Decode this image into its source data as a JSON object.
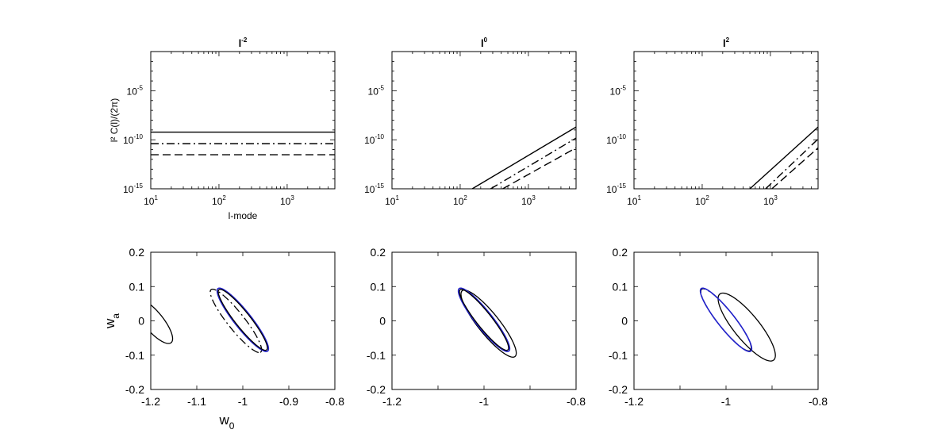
{
  "chart_data": [
    {
      "type": "line",
      "title": "l^-2",
      "title_base": "l",
      "title_exp": "-2",
      "xlabel": "l-mode",
      "ylabel": "l² C(l)/(2π)",
      "xscale": "log",
      "yscale": "log",
      "xlim": [
        10,
        5000
      ],
      "ylim": [
        1e-15,
        0.1
      ],
      "xticks": [
        {
          "base": "10",
          "exp": "1"
        },
        {
          "base": "10",
          "exp": "2"
        },
        {
          "base": "10",
          "exp": "3"
        }
      ],
      "yticks": [
        {
          "base": "10",
          "exp": "-15"
        },
        {
          "base": "10",
          "exp": "-10"
        },
        {
          "base": "10",
          "exp": "-5"
        }
      ],
      "series": [
        {
          "style": "solid",
          "x": [
            10,
            5000
          ],
          "y": [
            6e-10,
            6e-10
          ]
        },
        {
          "style": "dashdot",
          "x": [
            10,
            5000
          ],
          "y": [
            4e-11,
            4e-11
          ]
        },
        {
          "style": "dashed",
          "x": [
            10,
            5000
          ],
          "y": [
            3e-12,
            3e-12
          ]
        }
      ]
    },
    {
      "type": "line",
      "title": "l^0",
      "title_base": "l",
      "title_exp": "0",
      "xlabel": "",
      "ylabel": "",
      "xscale": "log",
      "yscale": "log",
      "xlim": [
        10,
        5000
      ],
      "ylim": [
        1e-15,
        0.1
      ],
      "xticks": [
        {
          "base": "10",
          "exp": "1"
        },
        {
          "base": "10",
          "exp": "2"
        },
        {
          "base": "10",
          "exp": "3"
        }
      ],
      "yticks": [
        {
          "base": "10",
          "exp": "-15"
        },
        {
          "base": "10",
          "exp": "-10"
        },
        {
          "base": "10",
          "exp": "-5"
        }
      ],
      "series": [
        {
          "style": "solid",
          "x": [
            150,
            5000
          ],
          "y": [
            1e-15,
            2e-09
          ]
        },
        {
          "style": "dashdot",
          "x": [
            280,
            5000
          ],
          "y": [
            1e-15,
            1.5e-10
          ]
        },
        {
          "style": "dashed",
          "x": [
            420,
            5000
          ],
          "y": [
            1e-15,
            1.5e-11
          ]
        }
      ]
    },
    {
      "type": "line",
      "title": "l^2",
      "title_base": "l",
      "title_exp": "2",
      "xlabel": "",
      "ylabel": "",
      "xscale": "log",
      "yscale": "log",
      "xlim": [
        10,
        5000
      ],
      "ylim": [
        1e-15,
        0.1
      ],
      "xticks": [
        {
          "base": "10",
          "exp": "1"
        },
        {
          "base": "10",
          "exp": "2"
        },
        {
          "base": "10",
          "exp": "3"
        }
      ],
      "yticks": [
        {
          "base": "10",
          "exp": "-15"
        },
        {
          "base": "10",
          "exp": "-10"
        },
        {
          "base": "10",
          "exp": "-5"
        }
      ],
      "series": [
        {
          "style": "solid",
          "x": [
            500,
            5000
          ],
          "y": [
            1e-15,
            2e-09
          ]
        },
        {
          "style": "dashdot",
          "x": [
            850,
            5000
          ],
          "y": [
            1e-15,
            1.2e-10
          ]
        },
        {
          "style": "dashed",
          "x": [
            1050,
            5000
          ],
          "y": [
            1e-15,
            1.5e-11
          ]
        }
      ]
    },
    {
      "type": "line",
      "title": "",
      "xlabel_base": "w",
      "xlabel_sub": "0",
      "ylabel_base": "w",
      "ylabel_sub": "a",
      "xlim": [
        -1.2,
        -0.8
      ],
      "ylim": [
        -0.2,
        0.2
      ],
      "xticks": [
        "-1.2",
        "-1.1",
        "-1",
        "-0.9",
        "-0.8"
      ],
      "yticks": [
        "-0.2",
        "-0.1",
        "0",
        "0.1",
        "0.2"
      ],
      "ellipses": [
        {
          "style": "solid",
          "color": "#000000",
          "cx": -1.195,
          "cy": 0.0,
          "rx": 0.075,
          "ry": 0.023,
          "angle_deg": -60
        },
        {
          "style": "dashdot",
          "color": "#000000",
          "cx": -1.015,
          "cy": 0.0,
          "rx": 0.106,
          "ry": 0.02,
          "angle_deg": -60
        },
        {
          "style": "solid",
          "color": "#2222cc",
          "cx": -1.0,
          "cy": 0.003,
          "rx": 0.106,
          "ry": 0.02,
          "angle_deg": -60
        },
        {
          "style": "solid",
          "color": "#000000",
          "cx": -1.0,
          "cy": 0.003,
          "rx": 0.102,
          "ry": 0.018,
          "angle_deg": -60
        }
      ]
    },
    {
      "type": "line",
      "title": "",
      "xlim": [
        -1.2,
        -0.8
      ],
      "ylim": [
        -0.2,
        0.2
      ],
      "xticks": [
        "-1.2",
        "",
        "-1",
        "",
        "-0.8"
      ],
      "yticks": [
        "-0.2",
        "-0.1",
        "0",
        "0.1",
        "0.2"
      ],
      "ellipses": [
        {
          "style": "solid",
          "color": "#000000",
          "cx": -0.99,
          "cy": -0.008,
          "rx": 0.112,
          "ry": 0.025,
          "angle_deg": -60
        },
        {
          "style": "solid",
          "color": "#2222cc",
          "cx": -1.0,
          "cy": 0.003,
          "rx": 0.106,
          "ry": 0.02,
          "angle_deg": -60
        },
        {
          "style": "solid",
          "color": "#000000",
          "cx": -1.0,
          "cy": 0.003,
          "rx": 0.102,
          "ry": 0.018,
          "angle_deg": -60
        }
      ]
    },
    {
      "type": "line",
      "title": "",
      "xlim": [
        -1.2,
        -0.8
      ],
      "ylim": [
        -0.2,
        0.2
      ],
      "xticks": [
        "-1.2",
        "",
        "-1",
        "",
        "-0.8"
      ],
      "yticks": [
        "-0.2",
        "-0.1",
        "0",
        "0.1",
        "0.2"
      ],
      "ellipses": [
        {
          "style": "solid",
          "color": "#000000",
          "cx": -0.955,
          "cy": -0.018,
          "rx": 0.113,
          "ry": 0.03,
          "angle_deg": -60
        },
        {
          "style": "dashdot",
          "color": "#000000",
          "cx": -1.0,
          "cy": 0.003,
          "rx": 0.104,
          "ry": 0.02,
          "angle_deg": -60
        },
        {
          "style": "solid",
          "color": "#2222cc",
          "cx": -1.0,
          "cy": 0.003,
          "rx": 0.106,
          "ry": 0.02,
          "angle_deg": -60
        }
      ]
    }
  ]
}
